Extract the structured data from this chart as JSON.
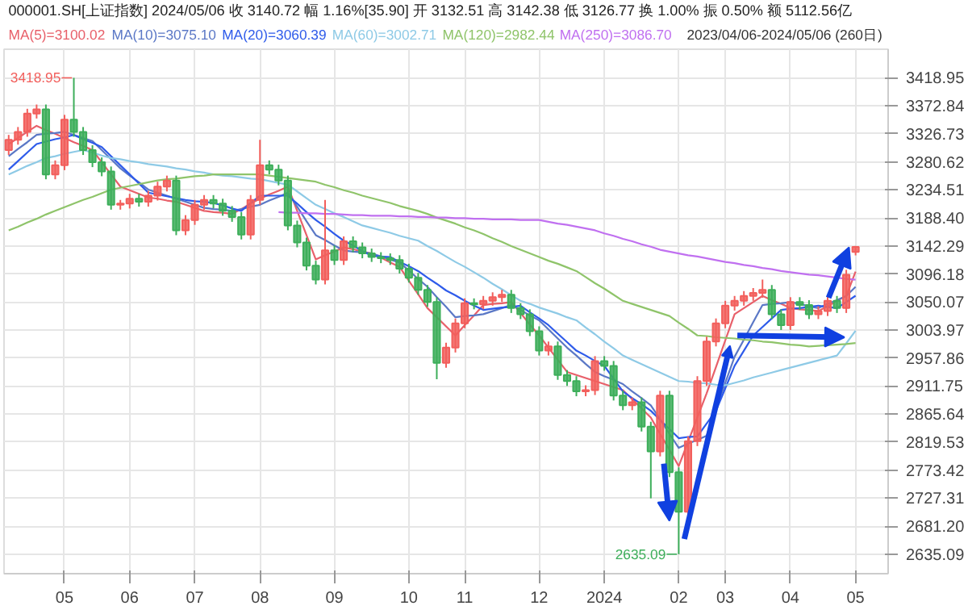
{
  "chart_data": {
    "type": "candlestick",
    "title": "000001.SH[上证指数] 2024/05/06 收 3140.72 幅 1.16%[35.90] 开 3132.51 高 3142.38 低 3126.77 换 1.00% 振 0.50% 额 5112.56亿",
    "subtitle": "2023/04/06-2024/05/06 (260日)",
    "categories": [
      null,
      null,
      null,
      null,
      null,
      null,
      "05",
      null,
      null,
      null,
      null,
      null,
      null,
      "06",
      null,
      null,
      null,
      null,
      null,
      null,
      "07",
      null,
      null,
      null,
      null,
      null,
      null,
      "08",
      null,
      null,
      null,
      null,
      null,
      null,
      null,
      "09",
      null,
      null,
      null,
      null,
      null,
      null,
      null,
      "10",
      null,
      null,
      null,
      null,
      null,
      "11",
      null,
      null,
      null,
      null,
      null,
      null,
      null,
      "12",
      null,
      null,
      null,
      null,
      null,
      null,
      "2024",
      null,
      null,
      null,
      null,
      null,
      null,
      null,
      "02",
      null,
      null,
      null,
      null,
      "03",
      null,
      null,
      null,
      null,
      null,
      null,
      "04",
      null,
      null,
      null,
      null,
      null,
      null,
      "05"
    ],
    "ohlc": [
      [
        3300,
        3325,
        3292,
        3317
      ],
      [
        3317,
        3338,
        3309,
        3330
      ],
      [
        3330,
        3368,
        3322,
        3360
      ],
      [
        3360,
        3375,
        3352,
        3367
      ],
      [
        3367,
        3375,
        3252,
        3260
      ],
      [
        3260,
        3283,
        3252,
        3275
      ],
      [
        3275,
        3358,
        3267,
        3350
      ],
      [
        3350,
        3418.95,
        3322,
        3330
      ],
      [
        3330,
        3338,
        3292,
        3300
      ],
      [
        3300,
        3308,
        3272,
        3280
      ],
      [
        3280,
        3288,
        3257,
        3265
      ],
      [
        3265,
        3273,
        3202,
        3210
      ],
      [
        3210,
        3218,
        3202,
        3212
      ],
      [
        3212,
        3228,
        3204,
        3220
      ],
      [
        3220,
        3228,
        3207,
        3215
      ],
      [
        3215,
        3233,
        3207,
        3225
      ],
      [
        3225,
        3248,
        3217,
        3240
      ],
      [
        3240,
        3258,
        3232,
        3250
      ],
      [
        3250,
        3258,
        3160,
        3168
      ],
      [
        3168,
        3193,
        3160,
        3185
      ],
      [
        3185,
        3218,
        3177,
        3210
      ],
      [
        3210,
        3226,
        3202,
        3218
      ],
      [
        3218,
        3226,
        3204,
        3212
      ],
      [
        3212,
        3220,
        3192,
        3200
      ],
      [
        3200,
        3208,
        3182,
        3190
      ],
      [
        3190,
        3198,
        3153,
        3161
      ],
      [
        3161,
        3226,
        3153,
        3218
      ],
      [
        3218,
        3317,
        3210,
        3275
      ],
      [
        3275,
        3283,
        3260,
        3268
      ],
      [
        3268,
        3276,
        3242,
        3250
      ],
      [
        3250,
        3258,
        3168,
        3176
      ],
      [
        3176,
        3184,
        3140,
        3148
      ],
      [
        3148,
        3156,
        3102,
        3110
      ],
      [
        3110,
        3118,
        3079,
        3087
      ],
      [
        3087,
        3218,
        3079,
        3135
      ],
      [
        3135,
        3143,
        3111,
        3119
      ],
      [
        3119,
        3158,
        3111,
        3150
      ],
      [
        3150,
        3158,
        3132,
        3140
      ],
      [
        3140,
        3148,
        3122,
        3130
      ],
      [
        3130,
        3138,
        3116,
        3124
      ],
      [
        3124,
        3132,
        3114,
        3122
      ],
      [
        3122,
        3130,
        3111,
        3119
      ],
      [
        3119,
        3127,
        3097,
        3105
      ],
      [
        3105,
        3113,
        3082,
        3090
      ],
      [
        3090,
        3098,
        3062,
        3070
      ],
      [
        3070,
        3078,
        3042,
        3050
      ],
      [
        3050,
        3058,
        2923,
        2950
      ],
      [
        2950,
        2983,
        2942,
        2975
      ],
      [
        2975,
        3023,
        2967,
        3015
      ],
      [
        3015,
        3056,
        3007,
        3048
      ],
      [
        3048,
        3056,
        3038,
        3046
      ],
      [
        3046,
        3060,
        3038,
        3052
      ],
      [
        3052,
        3066,
        3044,
        3058
      ],
      [
        3058,
        3070,
        3050,
        3062
      ],
      [
        3062,
        3070,
        3032,
        3040
      ],
      [
        3040,
        3048,
        3022,
        3030
      ],
      [
        3030,
        3038,
        2994,
        3002
      ],
      [
        3002,
        3010,
        2962,
        2970
      ],
      [
        2970,
        2985,
        2962,
        2977
      ],
      [
        2977,
        2985,
        2922,
        2930
      ],
      [
        2930,
        2938,
        2912,
        2920
      ],
      [
        2920,
        2928,
        2895,
        2903
      ],
      [
        2903,
        2913,
        2895,
        2905
      ],
      [
        2905,
        2961,
        2897,
        2953
      ],
      [
        2953,
        2961,
        2937,
        2945
      ],
      [
        2945,
        2953,
        2888,
        2896
      ],
      [
        2896,
        2904,
        2872,
        2880
      ],
      [
        2880,
        2893,
        2872,
        2885
      ],
      [
        2885,
        2893,
        2837,
        2845
      ],
      [
        2845,
        2853,
        2727,
        2804
      ],
      [
        2804,
        2904,
        2796,
        2896
      ],
      [
        2896,
        2904,
        2762,
        2770
      ],
      [
        2770,
        2778,
        2635.09,
        2705
      ],
      [
        2705,
        2829,
        2697,
        2821
      ],
      [
        2821,
        2928,
        2813,
        2920
      ],
      [
        2920,
        2993,
        2912,
        2985
      ],
      [
        2985,
        3023,
        2977,
        3015
      ],
      [
        3015,
        3052,
        3007,
        3044
      ],
      [
        3044,
        3060,
        3036,
        3052
      ],
      [
        3052,
        3068,
        3044,
        3060
      ],
      [
        3060,
        3073,
        3052,
        3065
      ],
      [
        3065,
        3087,
        3057,
        3070
      ],
      [
        3070,
        3078,
        3022,
        3030
      ],
      [
        3030,
        3038,
        3004,
        3012
      ],
      [
        3012,
        3058,
        3004,
        3050
      ],
      [
        3050,
        3058,
        3037,
        3045
      ],
      [
        3045,
        3053,
        3022,
        3030
      ],
      [
        3030,
        3043,
        3022,
        3035
      ],
      [
        3035,
        3060,
        3027,
        3052
      ],
      [
        3052,
        3060,
        3032,
        3040
      ],
      [
        3040,
        3103,
        3032,
        3095
      ],
      [
        3132.51,
        3142.38,
        3126.77,
        3140.72
      ]
    ],
    "colors": [
      "#f25f5c",
      "#f25f5c",
      "#f25f5c",
      "#f25f5c",
      "#3dae5a",
      "#f25f5c",
      "#f25f5c",
      "#3dae5a",
      "#3dae5a",
      "#3dae5a",
      "#3dae5a",
      "#3dae5a",
      "#f25f5c",
      "#f25f5c",
      "#3dae5a",
      "#f25f5c",
      "#f25f5c",
      "#f25f5c",
      "#3dae5a",
      "#f25f5c",
      "#f25f5c",
      "#f25f5c",
      "#3dae5a",
      "#3dae5a",
      "#3dae5a",
      "#3dae5a",
      "#f25f5c",
      "#f25f5c",
      "#3dae5a",
      "#3dae5a",
      "#3dae5a",
      "#3dae5a",
      "#3dae5a",
      "#3dae5a",
      "#f25f5c",
      "#3dae5a",
      "#f25f5c",
      "#3dae5a",
      "#3dae5a",
      "#3dae5a",
      "#3dae5a",
      "#3dae5a",
      "#3dae5a",
      "#3dae5a",
      "#3dae5a",
      "#3dae5a",
      "#3dae5a",
      "#f25f5c",
      "#f25f5c",
      "#f25f5c",
      "#3dae5a",
      "#f25f5c",
      "#f25f5c",
      "#f25f5c",
      "#3dae5a",
      "#3dae5a",
      "#3dae5a",
      "#3dae5a",
      "#f25f5c",
      "#3dae5a",
      "#3dae5a",
      "#3dae5a",
      "#f25f5c",
      "#f25f5c",
      "#3dae5a",
      "#3dae5a",
      "#3dae5a",
      "#f25f5c",
      "#3dae5a",
      "#3dae5a",
      "#f25f5c",
      "#3dae5a",
      "#3dae5a",
      "#f25f5c",
      "#f25f5c",
      "#f25f5c",
      "#f25f5c",
      "#f25f5c",
      "#f25f5c",
      "#f25f5c",
      "#f25f5c",
      "#f25f5c",
      "#3dae5a",
      "#3dae5a",
      "#f25f5c",
      "#3dae5a",
      "#3dae5a",
      "#f25f5c",
      "#f25f5c",
      "#3dae5a",
      "#f25f5c",
      "#f25f5c"
    ],
    "ylim": [
      2603,
      3466
    ],
    "yticks": [
      2635.09,
      {
        "value": 2681.2,
        "label": "2681.20"
      },
      2727.31,
      2773.42,
      2819.53,
      2865.64,
      2911.75,
      2957.86,
      3003.97,
      3050.07,
      3096.18,
      3142.29,
      {
        "value": 3188.4,
        "label": "3188.40"
      },
      3234.51,
      3280.62,
      3326.73,
      3372.84,
      3418.95
    ],
    "grid": true,
    "legend": "top",
    "series": [
      {
        "type": "line",
        "name": "MA(5)=3100.02",
        "color": "#e8606a",
        "values": [
          3310,
          3320,
          3330,
          3340,
          3333,
          3327,
          3320,
          3313,
          3307,
          3300,
          3280,
          3260,
          3240,
          3234,
          3228,
          3222,
          3220,
          3217,
          3215,
          3210,
          3205,
          3200,
          3198,
          3197,
          3195,
          3203,
          3212,
          3220,
          3227,
          3233,
          3240,
          3200,
          3160,
          3120,
          3127,
          3133,
          3140,
          3137,
          3133,
          3130,
          3123,
          3115,
          3108,
          3085,
          3063,
          3040,
          3025,
          3010,
          2995,
          3012,
          3028,
          3045,
          3047,
          3048,
          3050,
          3032,
          3013,
          2995,
          2975,
          2955,
          2935,
          2930,
          2925,
          2920,
          2915,
          2910,
          2905,
          2890,
          2875,
          2860,
          2833,
          2807,
          2780,
          2820,
          2860,
          2900,
          2943,
          2987,
          3030,
          3040,
          3050,
          3060,
          3053,
          3047,
          3040,
          3038,
          3037,
          3035,
          3043,
          3052,
          3060,
          3100.02
        ]
      },
      {
        "type": "line",
        "name": "MA(10)=3075.10",
        "color": "#5b78c6",
        "values": [
          3290,
          3302,
          3313,
          3325,
          3327,
          3328,
          3330,
          3325,
          3320,
          3315,
          3300,
          3285,
          3270,
          3258,
          3247,
          3235,
          3230,
          3225,
          3220,
          3215,
          3210,
          3205,
          3203,
          3202,
          3200,
          3203,
          3207,
          3210,
          3217,
          3223,
          3230,
          3207,
          3183,
          3160,
          3152,
          3143,
          3135,
          3133,
          3132,
          3130,
          3125,
          3120,
          3115,
          3102,
          3088,
          3075,
          3058,
          3042,
          3025,
          3027,
          3028,
          3030,
          3035,
          3040,
          3045,
          3037,
          3028,
          3020,
          3005,
          2990,
          2975,
          2962,
          2948,
          2935,
          2928,
          2922,
          2915,
          2903,
          2892,
          2880,
          2857,
          2833,
          2810,
          2817,
          2823,
          2830,
          2873,
          2917,
          2960,
          2988,
          3017,
          3045,
          3047,
          3048,
          3050,
          3047,
          3043,
          3040,
          3047,
          3053,
          3060,
          3075.1
        ]
      },
      {
        "type": "line",
        "name": "MA(20)=3060.39",
        "color": "#2e5bea",
        "values": [
          3268,
          3282,
          3296,
          3310,
          3314,
          3318,
          3321,
          3325,
          3318,
          3312,
          3305,
          3290,
          3275,
          3260,
          3245,
          3230,
          3227,
          3224,
          3221,
          3218,
          3216,
          3215,
          3213,
          3209,
          3204,
          3200,
          3213,
          3225,
          3225,
          3225,
          3225,
          3212,
          3198,
          3185,
          3174,
          3162,
          3151,
          3143,
          3134,
          3126,
          3125,
          3124,
          3116,
          3109,
          3101,
          3090,
          3080,
          3069,
          3061,
          3052,
          3044,
          3037,
          3039,
          3041,
          3042,
          3044,
          3033,
          3023,
          3012,
          2998,
          2984,
          2970,
          2962,
          2953,
          2945,
          2924,
          2903,
          2892,
          2882,
          2871,
          2856,
          2841,
          2826,
          2828,
          2829,
          2850,
          2871,
          2908,
          2945,
          2970,
          2995,
          3009,
          3023,
          3037,
          3039,
          3040,
          3042,
          3044,
          3042,
          3040,
          3050,
          3060.39
        ]
      },
      {
        "type": "line",
        "name": "MA(60)=3002.71",
        "color": "#8ecae6",
        "values": [
          3260,
          3267,
          3274,
          3280,
          3287,
          3290,
          3294,
          3297,
          3300,
          3296,
          3291,
          3287,
          3285,
          3282,
          3280,
          3277,
          3275,
          3273,
          3270,
          3268,
          3265,
          3263,
          3260,
          3258,
          3257,
          3255,
          3253,
          3252,
          3249,
          3246,
          3243,
          3232,
          3221,
          3210,
          3203,
          3196,
          3190,
          3183,
          3176,
          3172,
          3168,
          3164,
          3159,
          3155,
          3151,
          3142,
          3134,
          3125,
          3116,
          3108,
          3099,
          3090,
          3080,
          3071,
          3061,
          3052,
          3047,
          3041,
          3036,
          3031,
          3025,
          3020,
          3008,
          2997,
          2985,
          2974,
          2962,
          2955,
          2948,
          2941,
          2934,
          2927,
          2920,
          2919,
          2917,
          2916,
          2914,
          2913,
          2917,
          2921,
          2926,
          2930,
          2934,
          2938,
          2942,
          2946,
          2950,
          2954,
          2958,
          2962,
          2982,
          3002.71
        ]
      },
      {
        "type": "line",
        "name": "MA(120)=2982.44",
        "color": "#8fc46a",
        "values": [
          3168,
          3174,
          3181,
          3187,
          3194,
          3200,
          3206,
          3212,
          3218,
          3223,
          3229,
          3235,
          3238,
          3241,
          3244,
          3247,
          3250,
          3252,
          3253,
          3255,
          3257,
          3258,
          3260,
          3260,
          3260,
          3260,
          3260,
          3260,
          3258,
          3256,
          3254,
          3252,
          3250,
          3248,
          3243,
          3239,
          3234,
          3230,
          3225,
          3221,
          3217,
          3213,
          3208,
          3204,
          3200,
          3195,
          3189,
          3184,
          3179,
          3173,
          3168,
          3162,
          3155,
          3149,
          3142,
          3136,
          3130,
          3124,
          3118,
          3113,
          3107,
          3101,
          3091,
          3081,
          3072,
          3062,
          3052,
          3047,
          3042,
          3037,
          3032,
          3027,
          3016,
          3006,
          2995,
          2994,
          2992,
          2991,
          2990,
          2988,
          2987,
          2985,
          2984,
          2982,
          2980,
          2979,
          2977,
          2978,
          2979,
          2980,
          2981,
          2982.44
        ]
      },
      {
        "type": "line",
        "name": "MA(250)=3086.70",
        "color": "#c070f0",
        "values": [
          null,
          null,
          null,
          null,
          null,
          null,
          null,
          null,
          null,
          null,
          null,
          null,
          null,
          null,
          null,
          null,
          null,
          null,
          null,
          null,
          null,
          null,
          null,
          null,
          null,
          null,
          null,
          null,
          null,
          3198,
          3197,
          3197,
          3196,
          3196,
          3195,
          3195,
          3194,
          3193,
          3193,
          3192,
          3192,
          3192,
          3191,
          3191,
          3190,
          3190,
          3189,
          3189,
          3188,
          3188,
          3187,
          3187,
          3186,
          3186,
          3186,
          3185,
          3185,
          3185,
          3182,
          3179,
          3177,
          3174,
          3171,
          3168,
          3163,
          3159,
          3154,
          3150,
          3145,
          3141,
          3136,
          3133,
          3130,
          3127,
          3125,
          3122,
          3119,
          3116,
          3114,
          3111,
          3109,
          3106,
          3104,
          3101,
          3099,
          3097,
          3095,
          3094,
          3092,
          3090,
          3088,
          3086.7
        ]
      }
    ],
    "annotations": [
      "3418.95",
      "2635.09"
    ]
  }
}
